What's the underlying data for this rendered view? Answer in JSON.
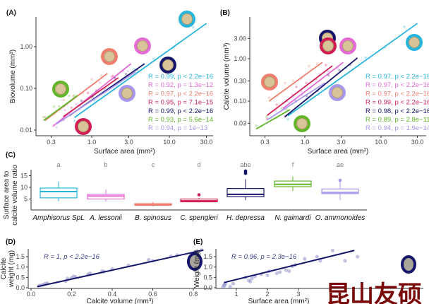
{
  "colors": {
    "cyan": "#27b5dc",
    "pink": "#e46ad6",
    "salmon": "#f07e6e",
    "crimson": "#d01f52",
    "navy": "#15166a",
    "green": "#62b62a",
    "lavender": "#a897ea"
  },
  "watermark": "昆山友硕",
  "chart_data": [
    {
      "panel": "(A)",
      "type": "scatter",
      "scale": "log-log",
      "xlabel": "Surface area (mm²)",
      "ylabel": "Biovolume (mm³)",
      "xticks": [
        "0.3",
        "1.0",
        "3.0",
        "10.0",
        "30.0"
      ],
      "xtick_values": [
        0.3,
        1,
        3,
        10,
        30
      ],
      "yticks": [
        "0.01",
        "0.10",
        "1.00"
      ],
      "ytick_values": [
        0.01,
        0.1,
        1
      ],
      "series": [
        {
          "color": "cyan",
          "label": "R = 0.99, p < 2.2e−16",
          "fit": [
            [
              0.6,
              0.02
            ],
            [
              30,
              3.6
            ]
          ]
        },
        {
          "color": "pink",
          "label": "R = 0.92, p = 1.3e−12",
          "fit": [
            [
              0.32,
              0.0126
            ],
            [
              3.2,
              0.39
            ]
          ]
        },
        {
          "color": "salmon",
          "label": "R = 0.97, p < 2.2e−16",
          "fit": [
            [
              0.25,
              0.017
            ],
            [
              1.6,
              0.23
            ]
          ]
        },
        {
          "color": "crimson",
          "label": "R = 0.95, p = 7.1e−15",
          "fit": [
            [
              0.43,
              0.021
            ],
            [
              2.2,
              0.18
            ]
          ]
        },
        {
          "color": "navy",
          "label": "R = 0.99, p < 2.2e−16",
          "fit": [
            [
              0.53,
              0.023
            ],
            [
              4.8,
              0.39
            ]
          ]
        },
        {
          "color": "green",
          "label": "R = 0.93, p = 5.6e−14",
          "fit": [
            [
              0.24,
              0.017
            ],
            [
              0.66,
              0.068
            ]
          ]
        },
        {
          "color": "lavender",
          "label": "R = 0.94, p = 1e−13",
          "fit": [
            [
              0.35,
              0.014
            ],
            [
              3.7,
              0.25
            ]
          ]
        }
      ]
    },
    {
      "panel": "(B)",
      "type": "scatter",
      "scale": "log-log",
      "xlabel": "Surface area (mm²)",
      "ylabel": "Calcite volume (mm³)",
      "xticks": [
        "0.3",
        "1.0",
        "3.0",
        "10.0",
        "30.0"
      ],
      "xtick_values": [
        0.3,
        1,
        3,
        10,
        30
      ],
      "yticks": [
        "0.03",
        "0.10",
        "0.30",
        "1.00",
        "3.00"
      ],
      "ytick_values": [
        0.03,
        0.1,
        0.3,
        1,
        3
      ],
      "series": [
        {
          "color": "cyan",
          "label": "R = 0.97, p < 2.2e−16",
          "fit": [
            [
              0.6,
              0.045
            ],
            [
              30,
              6.8
            ]
          ]
        },
        {
          "color": "pink",
          "label": "R = 0.97, p < 2.2e−16",
          "fit": [
            [
              0.52,
              0.068
            ],
            [
              3.2,
              0.82
            ]
          ]
        },
        {
          "color": "salmon",
          "label": "R = 0.97, p < 2.2e−16",
          "fit": [
            [
              0.34,
              0.1
            ],
            [
              1.7,
              0.82
            ]
          ]
        },
        {
          "color": "crimson",
          "label": "R = 0.99, p < 2.2e−16",
          "fit": [
            [
              0.32,
              0.046
            ],
            [
              2.3,
              0.68
            ]
          ]
        },
        {
          "color": "navy",
          "label": "R = 0.98, p < 2.2e−16",
          "fit": [
            [
              0.55,
              0.043
            ],
            [
              4.9,
              1.04
            ]
          ]
        },
        {
          "color": "green",
          "label": "R = 0.89, p = 2.8e−11",
          "fit": [
            [
              0.23,
              0.022
            ],
            [
              0.64,
              0.063
            ]
          ]
        },
        {
          "color": "lavender",
          "label": "R = 0.94, p = 1.9e−14",
          "fit": [
            [
              0.32,
              0.036
            ],
            [
              1.85,
              0.27
            ]
          ]
        }
      ]
    },
    {
      "panel": "(C)",
      "type": "box",
      "ylabel": [
        "Surface area to",
        "calcite volume ratio"
      ],
      "yticks": [
        "5",
        "10",
        "15"
      ],
      "ytick_values": [
        5,
        10,
        15
      ],
      "boxes": [
        {
          "category": "Amphisorus SpL",
          "letter": "a",
          "color": "cyan",
          "min": 4,
          "q1": 5.5,
          "median": 8.2,
          "q3": 9.7,
          "max": 12.5,
          "outliers": []
        },
        {
          "category": "A. lessonii",
          "letter": "b",
          "color": "pink",
          "min": 4,
          "q1": 5,
          "median": 6.3,
          "q3": 7,
          "max": 9,
          "outliers": []
        },
        {
          "category": "B. spinosus",
          "letter": "c",
          "color": "salmon",
          "min": 1.8,
          "q1": 2.3,
          "median": 2.7,
          "q3": 3,
          "max": 3.8,
          "outliers": []
        },
        {
          "category": "C. spengleri",
          "letter": "d",
          "color": "crimson",
          "min": 3.5,
          "q1": 3.8,
          "median": 4.2,
          "q3": 5,
          "max": 5.5,
          "outliers": [
            6.8
          ]
        },
        {
          "category": "H. depressa",
          "letter": "abe",
          "color": "navy",
          "min": 4.5,
          "q1": 6,
          "median": 7,
          "q3": 9.5,
          "max": 13.5,
          "outliers": [
            16,
            16.5,
            17
          ]
        },
        {
          "category": "N. gaimardi",
          "letter": "f",
          "color": "green",
          "min": 8.5,
          "q1": 10.3,
          "median": 11.3,
          "q3": 12.7,
          "max": 14.7,
          "outliers": []
        },
        {
          "category": "O. ammonoides",
          "letter": "ae",
          "color": "lavender",
          "min": 4.5,
          "q1": 7.3,
          "median": 7.8,
          "q3": 9.3,
          "max": 12.5,
          "outliers": [
            13
          ]
        }
      ]
    },
    {
      "panel": "(D)",
      "type": "scatter",
      "xlabel": "Calcite volume (mm³)",
      "ylabel": [
        "Calcite",
        "weight (mg)"
      ],
      "annotation": "R = 1, p < 2.2e−16",
      "xticks": [
        "0.0",
        "0.2",
        "0.4",
        "0.6",
        "0.8"
      ],
      "xtick_values": [
        0,
        0.2,
        0.4,
        0.6,
        0.8
      ],
      "yticks": [
        "0.0",
        "0.5",
        "1.0",
        "1.5"
      ],
      "ytick_values": [
        0,
        0.5,
        1,
        1.5
      ],
      "fit": [
        [
          0.03,
          0.05
        ],
        [
          0.85,
          1.82
        ]
      ],
      "points": [
        [
          0.04,
          0.1
        ],
        [
          0.05,
          0.12
        ],
        [
          0.06,
          0.15
        ],
        [
          0.07,
          0.2
        ],
        [
          0.08,
          0.22
        ],
        [
          0.17,
          0.32
        ],
        [
          0.18,
          0.45
        ],
        [
          0.2,
          0.48
        ],
        [
          0.21,
          0.55
        ],
        [
          0.22,
          0.52
        ],
        [
          0.28,
          0.65
        ],
        [
          0.29,
          0.7
        ],
        [
          0.35,
          0.8
        ],
        [
          0.36,
          0.78
        ],
        [
          0.4,
          0.9
        ],
        [
          0.48,
          1.08
        ],
        [
          0.58,
          1.35
        ],
        [
          0.6,
          1.3
        ],
        [
          0.69,
          1.52
        ],
        [
          0.72,
          1.57
        ],
        [
          0.84,
          1.82
        ]
      ]
    },
    {
      "panel": "(E)",
      "type": "scatter",
      "xlabel": "Surface area (mm²)",
      "ylabel": "Weight (mg)",
      "annotation": "R = 0.96, p = 2.3e−16",
      "xticks": [
        "1",
        "2",
        "3"
      ],
      "xtick_values": [
        1,
        2,
        3
      ],
      "yticks": [
        "0.0",
        "0.5",
        "1.0",
        "1.5"
      ],
      "ytick_values": [
        0,
        0.5,
        1,
        1.5
      ],
      "fit": [
        [
          0.6,
          0.25
        ],
        [
          4.8,
          1.8
        ]
      ],
      "points": [
        [
          0.57,
          0.05
        ],
        [
          0.6,
          0.15
        ],
        [
          0.62,
          0.1
        ],
        [
          0.65,
          0.2
        ],
        [
          0.8,
          0.05
        ],
        [
          0.9,
          0.2
        ],
        [
          1.3,
          0.5
        ],
        [
          1.4,
          0.35
        ],
        [
          1.45,
          0.3
        ],
        [
          1.5,
          0.45
        ],
        [
          1.6,
          0.55
        ],
        [
          1.8,
          0.65
        ],
        [
          2.0,
          0.6
        ],
        [
          2.05,
          0.8
        ],
        [
          2.3,
          0.7
        ],
        [
          2.4,
          0.75
        ],
        [
          2.6,
          0.85
        ],
        [
          2.7,
          0.8
        ],
        [
          2.8,
          1.05
        ],
        [
          2.9,
          1.1
        ],
        [
          3.2,
          1.4
        ],
        [
          3.6,
          1.5
        ],
        [
          3.7,
          1.3
        ],
        [
          4.1,
          1.8
        ],
        [
          4.5,
          1.3
        ],
        [
          4.9,
          1.5
        ]
      ]
    }
  ]
}
